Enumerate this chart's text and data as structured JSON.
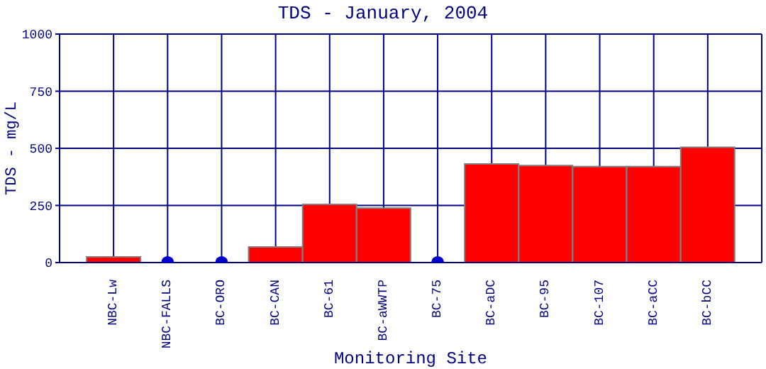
{
  "chart_data": {
    "type": "bar",
    "title": "TDS - January, 2004",
    "xlabel": "Monitoring Site",
    "ylabel": "TDS - mg/L",
    "categories": [
      "NBC-Lw",
      "NBC-FALLS",
      "BC-ORO",
      "BC-CAN",
      "BC-61",
      "BC-aWWTP",
      "BC-75",
      "BC-aDC",
      "BC-95",
      "BC-107",
      "BC-aCC",
      "BC-bCC"
    ],
    "series": [
      {
        "color": "#ff0000",
        "values": [
          25,
          null,
          null,
          68,
          255,
          238,
          null,
          432,
          425,
          420,
          420,
          505
        ]
      },
      {
        "type": "scatter",
        "color": "#0000cc",
        "x": [
          "NBC-FALLS",
          "BC-ORO",
          "BC-75"
        ],
        "values": [
          0,
          0,
          0
        ]
      }
    ],
    "ylim": [
      0,
      1000
    ],
    "yticks": [
      0,
      250,
      500,
      750,
      1000
    ],
    "grid": true
  }
}
